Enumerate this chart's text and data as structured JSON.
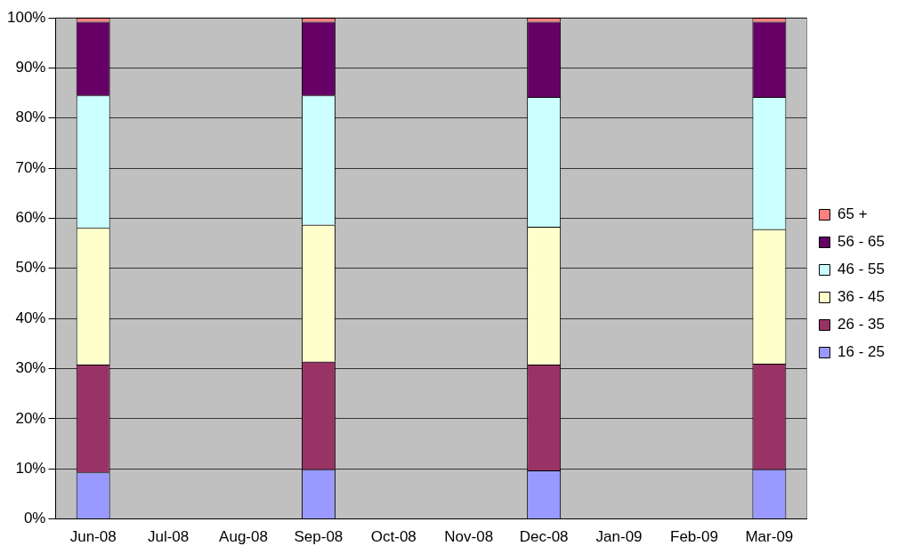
{
  "chart_data": {
    "type": "bar",
    "stacked": true,
    "categories": [
      "Jun-08",
      "Jul-08",
      "Aug-08",
      "Sep-08",
      "Oct-08",
      "Nov-08",
      "Dec-08",
      "Jan-09",
      "Feb-09",
      "Mar-09"
    ],
    "series": [
      {
        "name": "16 - 25",
        "color": "#9999ff",
        "values": [
          9.3,
          null,
          null,
          9.9,
          null,
          null,
          9.7,
          null,
          null,
          9.9
        ]
      },
      {
        "name": "26 - 35",
        "color": "#993366",
        "values": [
          21.5,
          null,
          null,
          21.5,
          null,
          null,
          21.1,
          null,
          null,
          21.1
        ]
      },
      {
        "name": "36 - 45",
        "color": "#ffffcc",
        "values": [
          27.3,
          null,
          null,
          27.3,
          null,
          null,
          27.5,
          null,
          null,
          26.8
        ]
      },
      {
        "name": "46 - 55",
        "color": "#ccffff",
        "values": [
          26.4,
          null,
          null,
          25.8,
          null,
          null,
          25.9,
          null,
          null,
          26.4
        ]
      },
      {
        "name": "56 - 65",
        "color": "#660066",
        "values": [
          14.7,
          null,
          null,
          14.7,
          null,
          null,
          15.0,
          null,
          null,
          15.0
        ]
      },
      {
        "name": "65 +",
        "color": "#ff8080",
        "values": [
          0.8,
          null,
          null,
          0.8,
          null,
          null,
          0.8,
          null,
          null,
          0.8
        ]
      }
    ],
    "ylim": [
      0,
      100
    ],
    "yticks": [
      {
        "value": 0,
        "label": "0%"
      },
      {
        "value": 10,
        "label": "10%"
      },
      {
        "value": 20,
        "label": "20%"
      },
      {
        "value": 30,
        "label": "30%"
      },
      {
        "value": 40,
        "label": "40%"
      },
      {
        "value": 50,
        "label": "50%"
      },
      {
        "value": 60,
        "label": "60%"
      },
      {
        "value": 70,
        "label": "70%"
      },
      {
        "value": 80,
        "label": "80%"
      },
      {
        "value": 90,
        "label": "90%"
      },
      {
        "value": 100,
        "label": "100%"
      }
    ],
    "grid": "y",
    "legend": "right"
  }
}
